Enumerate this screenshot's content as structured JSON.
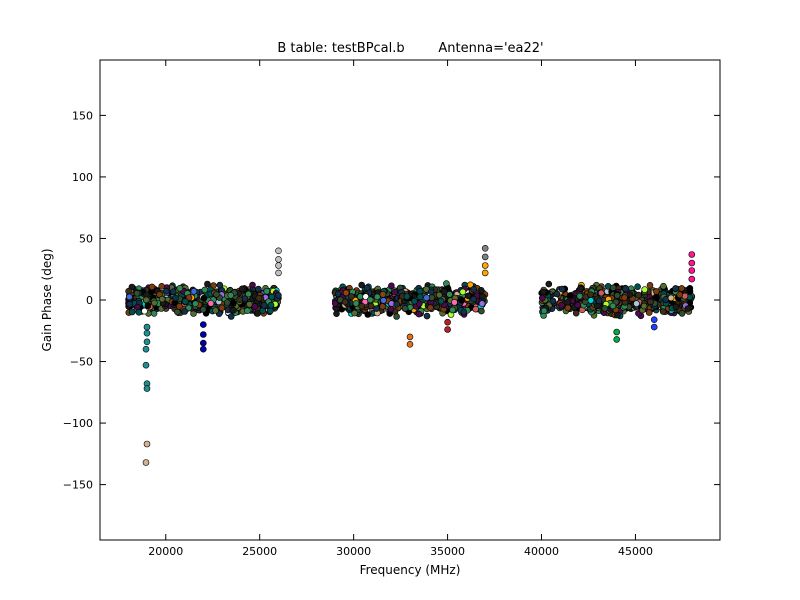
{
  "chart_data": {
    "type": "scatter",
    "title": "B table: testBPcal.b",
    "title_antenna": "Antenna='ea22'",
    "xlabel": "Frequency (MHz)",
    "ylabel": "Gain Phase (deg)",
    "xlim": [
      16500,
      49500
    ],
    "ylim": [
      -195,
      195
    ],
    "xticks": [
      20000,
      25000,
      30000,
      35000,
      40000,
      45000
    ],
    "yticks": [
      -150,
      -100,
      -50,
      0,
      50,
      100,
      150
    ],
    "xtick_labels": [
      "20000",
      "25000",
      "30000",
      "35000",
      "40000",
      "45000"
    ],
    "ytick_labels": [
      "−150",
      "−100",
      "−50",
      "0",
      "50",
      "100",
      "150"
    ],
    "grid": false,
    "legend": "none",
    "marker": "circle",
    "band_groups": [
      {
        "x_start": 18000,
        "x_end": 26000,
        "y_low": -15,
        "y_high": 15
      },
      {
        "x_start": 29000,
        "x_end": 37000,
        "y_low": -15,
        "y_high": 15
      },
      {
        "x_start": 40000,
        "x_end": 48000,
        "y_low": -15,
        "y_high": 15
      }
    ],
    "highlighted_points": [
      {
        "x": 19000,
        "y": -22,
        "color": "#1f8f8f"
      },
      {
        "x": 19000,
        "y": -27,
        "color": "#1f8f8f"
      },
      {
        "x": 19000,
        "y": -34,
        "color": "#1f8f8f"
      },
      {
        "x": 18950,
        "y": -40,
        "color": "#1f8f8f"
      },
      {
        "x": 18950,
        "y": -53,
        "color": "#1f8f8f"
      },
      {
        "x": 19000,
        "y": -68,
        "color": "#1f8f8f"
      },
      {
        "x": 19000,
        "y": -72,
        "color": "#1f8f8f"
      },
      {
        "x": 19000,
        "y": -117,
        "color": "#d2b48c"
      },
      {
        "x": 18950,
        "y": -132,
        "color": "#d2b48c"
      },
      {
        "x": 22000,
        "y": -20,
        "color": "#0000aa"
      },
      {
        "x": 22000,
        "y": -28,
        "color": "#0000aa"
      },
      {
        "x": 22000,
        "y": -35,
        "color": "#0000aa"
      },
      {
        "x": 22000,
        "y": -40,
        "color": "#0000aa"
      },
      {
        "x": 26000,
        "y": 40,
        "color": "#c0c0c0"
      },
      {
        "x": 26000,
        "y": 33,
        "color": "#c0c0c0"
      },
      {
        "x": 26000,
        "y": 28,
        "color": "#c0c0c0"
      },
      {
        "x": 26000,
        "y": 22,
        "color": "#c0c0c0"
      },
      {
        "x": 33000,
        "y": -30,
        "color": "#e07020"
      },
      {
        "x": 33000,
        "y": -36,
        "color": "#e07020"
      },
      {
        "x": 35000,
        "y": -18,
        "color": "#b22222"
      },
      {
        "x": 35000,
        "y": -24,
        "color": "#b22222"
      },
      {
        "x": 37000,
        "y": 42,
        "color": "#808080"
      },
      {
        "x": 37000,
        "y": 35,
        "color": "#808080"
      },
      {
        "x": 37000,
        "y": 28,
        "color": "#ffa500"
      },
      {
        "x": 37000,
        "y": 22,
        "color": "#ffa500"
      },
      {
        "x": 44000,
        "y": -26,
        "color": "#00aa44"
      },
      {
        "x": 44000,
        "y": -32,
        "color": "#00aa44"
      },
      {
        "x": 46000,
        "y": -16,
        "color": "#2040ff"
      },
      {
        "x": 46000,
        "y": -22,
        "color": "#2040ff"
      },
      {
        "x": 48000,
        "y": 37,
        "color": "#ff1493"
      },
      {
        "x": 48000,
        "y": 30,
        "color": "#ff1493"
      },
      {
        "x": 48000,
        "y": 24,
        "color": "#ff1493"
      },
      {
        "x": 48000,
        "y": 17,
        "color": "#ff1493"
      }
    ],
    "palette": [
      "#000000",
      "#1a1a1a",
      "#2f4f2f",
      "#3b2f1a",
      "#14304a",
      "#005050",
      "#7a3b10",
      "#4b0a4b",
      "#556b2f",
      "#8b4513",
      "#2e8b57",
      "#d2b48c",
      "#ffa500",
      "#00ced1",
      "#ff69b4",
      "#9370db",
      "#adff2f",
      "#4169e1",
      "#b0c4de",
      "#cd5c5c",
      "#ffffff"
    ]
  }
}
